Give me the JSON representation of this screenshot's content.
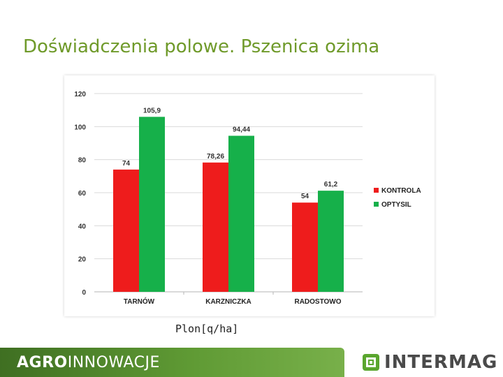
{
  "slide": {
    "title": "Doświadczenia polowe. Pszenica ozima",
    "unit_label": "Plon[q/ha]"
  },
  "footer": {
    "brand_strong": "AGRO",
    "brand_light": "INNOWACJE",
    "logo_text": "INTERMAG",
    "logo_icon": "intermag-logo-icon"
  },
  "colors": {
    "title": "#6f9a2a",
    "kontrola": "#ee1c1c",
    "optysil": "#16b04a",
    "footer": "#5f9a34"
  },
  "chart_data": {
    "type": "bar",
    "categories": [
      "TARNÓW",
      "KARZNICZKA",
      "RADOSTOWO"
    ],
    "series": [
      {
        "name": "KONTROLA",
        "values": [
          74,
          78.26,
          54
        ],
        "labels": [
          "74",
          "78,26",
          "54"
        ],
        "color": "#ee1c1c"
      },
      {
        "name": "OPTYSIL",
        "values": [
          105.9,
          94.44,
          61.2
        ],
        "labels": [
          "105,9",
          "94,44",
          "61,2"
        ],
        "color": "#16b04a"
      }
    ],
    "ylim": [
      0,
      120
    ],
    "yticks": [
      0,
      20,
      40,
      60,
      80,
      100,
      120
    ],
    "grid": true,
    "legend": "right",
    "title": "",
    "xlabel": "",
    "ylabel": ""
  }
}
